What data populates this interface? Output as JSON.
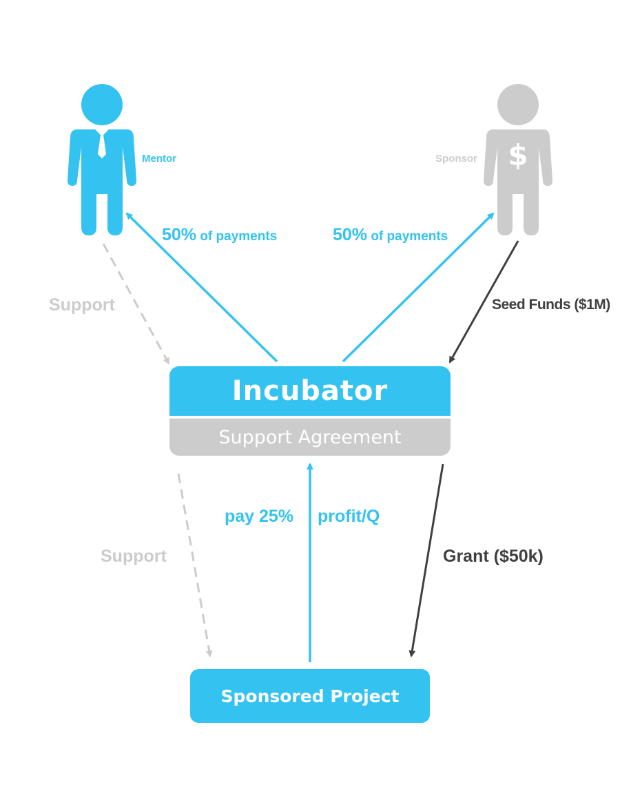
{
  "actors": {
    "mentor": {
      "label": "Mentor",
      "icon": "person-tie-icon",
      "color": "#34c3f0"
    },
    "sponsor": {
      "label": "Sponsor",
      "icon": "person-dollar-icon",
      "color": "#cccccc"
    }
  },
  "nodes": {
    "incubator": {
      "title": "Incubator",
      "subtitle": "Support Agreement"
    },
    "project": {
      "label": "Sponsored Project"
    }
  },
  "edges": {
    "incubator_to_mentor": {
      "pct": "50%",
      "rest": " of payments"
    },
    "incubator_to_sponsor": {
      "pct": "50%",
      "rest": " of payments"
    },
    "sponsor_to_incubator": {
      "label": "Seed Funds ($1M)"
    },
    "mentor_to_incubator": {
      "label": "Support"
    },
    "incubator_to_project_support": {
      "label": "Support"
    },
    "project_to_incubator": {
      "left": "pay 25%",
      "right": "profit/Q"
    },
    "incubator_to_project_grant": {
      "label": "Grant ($50k)"
    }
  },
  "colors": {
    "accent": "#34c3f0",
    "muted": "#cccccc",
    "dark": "#404040"
  }
}
